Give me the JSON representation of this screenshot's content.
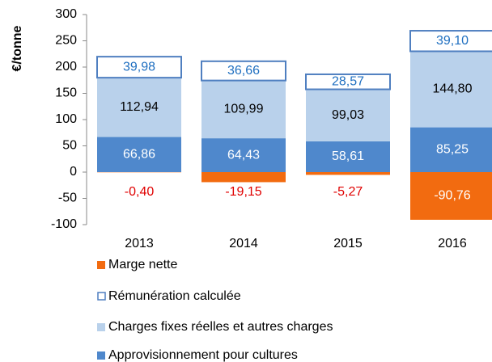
{
  "chart_data": {
    "type": "stacked_bar",
    "y_label": "€/tonne",
    "categories": [
      "2013",
      "2014",
      "2015",
      "2016"
    ],
    "ylim": [
      -100,
      300
    ],
    "yticks": [
      -100,
      -50,
      0,
      50,
      100,
      150,
      200,
      250,
      300
    ],
    "series": [
      {
        "name": "Approvisionnement pour cultures",
        "color": "#4f88cc",
        "values": [
          66.86,
          64.43,
          58.61,
          85.25
        ],
        "value_labels": [
          "66,86",
          "64,43",
          "58,61",
          "85,25"
        ]
      },
      {
        "name": "Charges fixes réelles et autres charges",
        "color": "#b9d1eb",
        "values": [
          112.94,
          109.99,
          99.03,
          144.8
        ],
        "value_labels": [
          "112,94",
          "109,99",
          "99,03",
          "144,80"
        ]
      },
      {
        "name": "Rémunération calculée",
        "color": "#4f7fc0",
        "values": [
          39.98,
          36.66,
          28.57,
          39.1
        ],
        "value_labels": [
          "39,98",
          "36,66",
          "28,57",
          "39,10"
        ]
      },
      {
        "name": "Marge nette",
        "color": "#f26b10",
        "values": [
          -0.4,
          -19.15,
          -5.27,
          -90.76
        ],
        "value_labels": [
          "-0,40",
          "-19,15",
          "-5,27",
          "-90,76"
        ]
      }
    ],
    "legend": "bottom"
  }
}
